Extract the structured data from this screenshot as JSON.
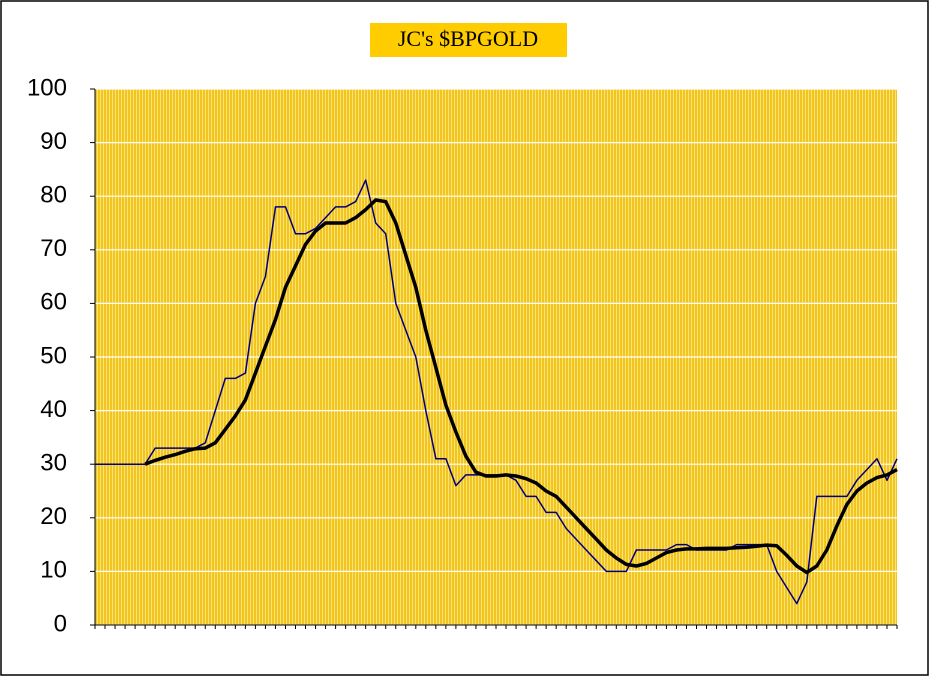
{
  "chart_data": {
    "type": "line",
    "title": "JC's $BPGOLD",
    "categories": [
      null,
      null,
      null,
      null,
      null,
      null,
      null,
      null,
      null,
      null,
      null,
      null,
      null,
      null,
      null,
      null,
      null,
      null,
      null,
      null,
      null,
      null,
      null,
      null,
      null,
      null,
      null,
      null,
      null,
      null,
      null,
      null,
      null,
      null,
      null,
      null,
      null,
      null,
      null,
      null,
      null,
      null,
      null,
      null,
      null,
      null,
      null,
      null,
      null,
      null,
      null,
      null,
      null,
      null,
      null,
      null,
      null,
      null,
      null,
      null,
      null,
      null,
      null,
      null,
      null,
      null,
      null,
      null,
      null,
      null,
      null,
      null,
      null,
      null,
      null,
      null,
      null,
      null,
      null,
      null,
      null
    ],
    "series": [
      {
        "color": "#000080",
        "width": 1.5,
        "values": [
          30,
          30,
          30,
          30,
          30,
          30,
          33,
          33,
          33,
          33,
          33,
          34,
          40,
          46,
          46,
          47,
          60,
          65,
          78,
          78,
          73,
          73,
          74,
          76,
          78,
          78,
          79,
          83,
          75,
          73,
          60,
          55,
          50,
          40,
          31,
          31,
          26,
          28,
          28,
          28,
          28,
          28,
          27,
          24,
          24,
          21,
          21,
          18,
          16,
          14,
          12,
          10,
          10,
          10,
          14,
          14,
          14,
          14,
          15,
          15,
          14,
          14,
          14,
          14,
          15,
          15,
          15,
          15,
          10,
          7,
          4,
          8,
          24,
          24,
          24,
          24,
          27,
          29,
          31,
          27,
          31
        ]
      },
      {
        "color": "#000000",
        "width": 3.5,
        "values": [
          null,
          null,
          null,
          null,
          null,
          30,
          30.7,
          31.3,
          31.8,
          32.4,
          32.9,
          33,
          34,
          36.5,
          39,
          42,
          47,
          52,
          57,
          63,
          67,
          71,
          73.5,
          75,
          75,
          75,
          76,
          77.5,
          79.3,
          79,
          75,
          69,
          63,
          55,
          48,
          41,
          36,
          31.5,
          28.5,
          27.8,
          27.8,
          28,
          27.8,
          27.3,
          26.5,
          25,
          24,
          22,
          20,
          18,
          16,
          14,
          12.5,
          11.3,
          11,
          11.5,
          12.5,
          13.5,
          14,
          14.2,
          14.2,
          14.3,
          14.3,
          14.3,
          14.4,
          14.5,
          14.7,
          14.9,
          14.8,
          13,
          11,
          9.8,
          11,
          14,
          18.5,
          22.5,
          25,
          26.5,
          27.5,
          28,
          29
        ]
      }
    ],
    "ylim": [
      0,
      100
    ],
    "yticks": [
      0,
      10,
      20,
      30,
      40,
      50,
      60,
      70,
      80,
      90,
      100
    ],
    "grid": true
  }
}
